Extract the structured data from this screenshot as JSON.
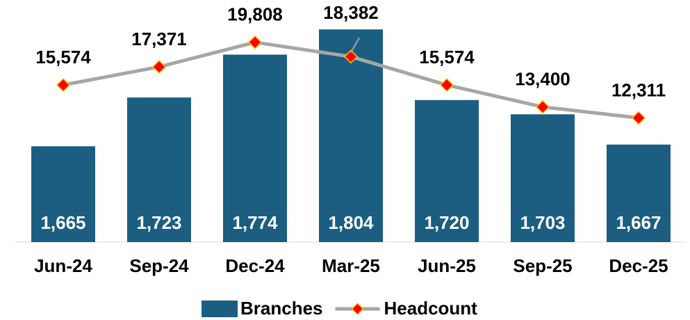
{
  "chart_data": {
    "type": "bar_line",
    "categories": [
      "Jun-24",
      "Sep-24",
      "Dec-24",
      "Mar-25",
      "Jun-25",
      "Sep-25",
      "Dec-25"
    ],
    "series": [
      {
        "name": "Branches",
        "type": "bar",
        "color": "#1b5e82",
        "values": [
          1665,
          1723,
          1774,
          1804,
          1720,
          1703,
          1667
        ],
        "value_labels": [
          "1,665",
          "1,723",
          "1,774",
          "1,804",
          "1,720",
          "1,703",
          "1,667"
        ]
      },
      {
        "name": "Headcount",
        "type": "line",
        "axis": "y2",
        "color": "#a6a6a6",
        "marker_color": "#ff0000",
        "values": [
          15574,
          17371,
          19808,
          18382,
          15574,
          13400,
          12311
        ],
        "value_labels": [
          "15,574",
          "17,371",
          "19,808",
          "18,382",
          "15,574",
          "13,400",
          "12,311"
        ]
      }
    ],
    "ylim": [
      1551,
      1839
    ],
    "y2lim": [
      0,
      24000
    ],
    "legend": "bottom"
  }
}
